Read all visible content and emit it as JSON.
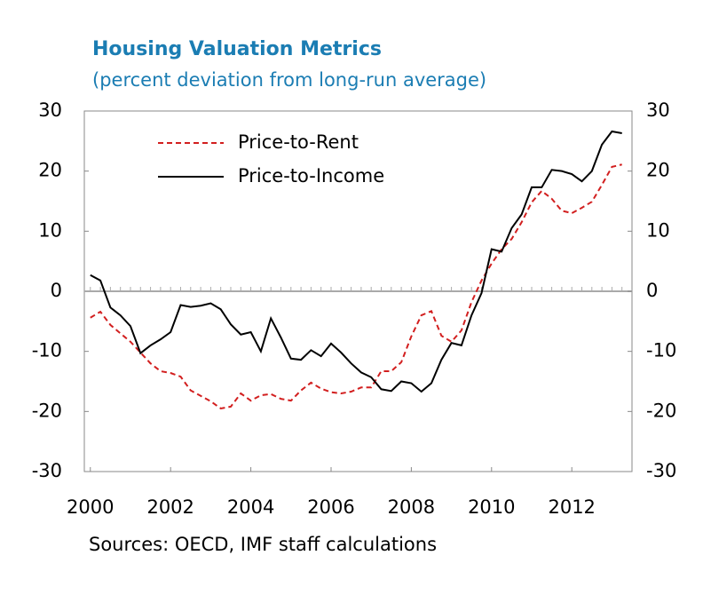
{
  "chart_data": {
    "type": "line",
    "title": "Housing Valuation Metrics",
    "subtitle": "(percent deviation from long-run average)",
    "source": "Sources: OECD, IMF staff calculations",
    "x": [
      2000,
      2000.25,
      2000.5,
      2000.75,
      2001,
      2001.25,
      2001.5,
      2001.75,
      2002,
      2002.25,
      2002.5,
      2002.75,
      2003,
      2003.25,
      2003.5,
      2003.75,
      2004,
      2004.25,
      2004.5,
      2004.75,
      2005,
      2005.25,
      2005.5,
      2005.75,
      2006,
      2006.25,
      2006.5,
      2006.75,
      2007,
      2007.25,
      2007.5,
      2007.75,
      2008,
      2008.25,
      2008.5,
      2008.75,
      2009,
      2009.25,
      2009.5,
      2009.75,
      2010,
      2010.25,
      2010.5,
      2010.75,
      2011,
      2011.25,
      2011.5,
      2011.75,
      2012,
      2012.25,
      2012.5,
      2012.75,
      2013,
      2013.25
    ],
    "series": [
      {
        "name": "Price-to-Rent",
        "color": "#d21f1f",
        "dash": true,
        "values": [
          -4.4,
          -3.4,
          -5.6,
          -7,
          -8.4,
          -10.2,
          -12,
          -13.3,
          -13.6,
          -14.2,
          -16.5,
          -17.4,
          -18.3,
          -19.5,
          -19.2,
          -17,
          -18.2,
          -17.3,
          -17.1,
          -17.9,
          -18.2,
          -16.5,
          -15.2,
          -16.2,
          -16.8,
          -17,
          -16.7,
          -16,
          -16,
          -13.3,
          -13.3,
          -11.8,
          -7.5,
          -4,
          -3.3,
          -7.4,
          -8.4,
          -6.5,
          -1.8,
          1.8,
          4.6,
          7,
          8.7,
          11.5,
          14.8,
          16.7,
          15.4,
          13.4,
          13,
          13.9,
          14.9,
          17.7,
          20.7,
          21.1
        ]
      },
      {
        "name": "Price-to-Income",
        "color": "#000000",
        "dash": false,
        "values": [
          2.7,
          1.8,
          -2.7,
          -4,
          -5.8,
          -10.3,
          -9,
          -8,
          -6.8,
          -2.3,
          -2.6,
          -2.4,
          -2,
          -3,
          -5.5,
          -7.2,
          -6.8,
          -10,
          -4.5,
          -7.7,
          -11.2,
          -11.4,
          -9.8,
          -10.8,
          -8.7,
          -10.2,
          -12,
          -13.5,
          -14.3,
          -16.3,
          -16.6,
          -15,
          -15.3,
          -16.7,
          -15.3,
          -11.4,
          -8.6,
          -9,
          -4,
          -0.3,
          7,
          6.6,
          10.5,
          12.8,
          17.3,
          17.3,
          20.2,
          20,
          19.5,
          18.3,
          20,
          24.4,
          26.6,
          26.3
        ]
      }
    ],
    "xlim": [
      1999.85,
      2013.5
    ],
    "xticks": [
      2000,
      2002,
      2004,
      2006,
      2008,
      2010,
      2012
    ],
    "ylim": [
      -30,
      30
    ],
    "yticks": [
      -30,
      -20,
      -10,
      0,
      10,
      20,
      30
    ],
    "y2lim": [
      -30,
      30
    ],
    "y2ticks": [
      -30,
      -20,
      -10,
      0,
      10,
      20,
      30
    ],
    "legend": "upper left"
  }
}
